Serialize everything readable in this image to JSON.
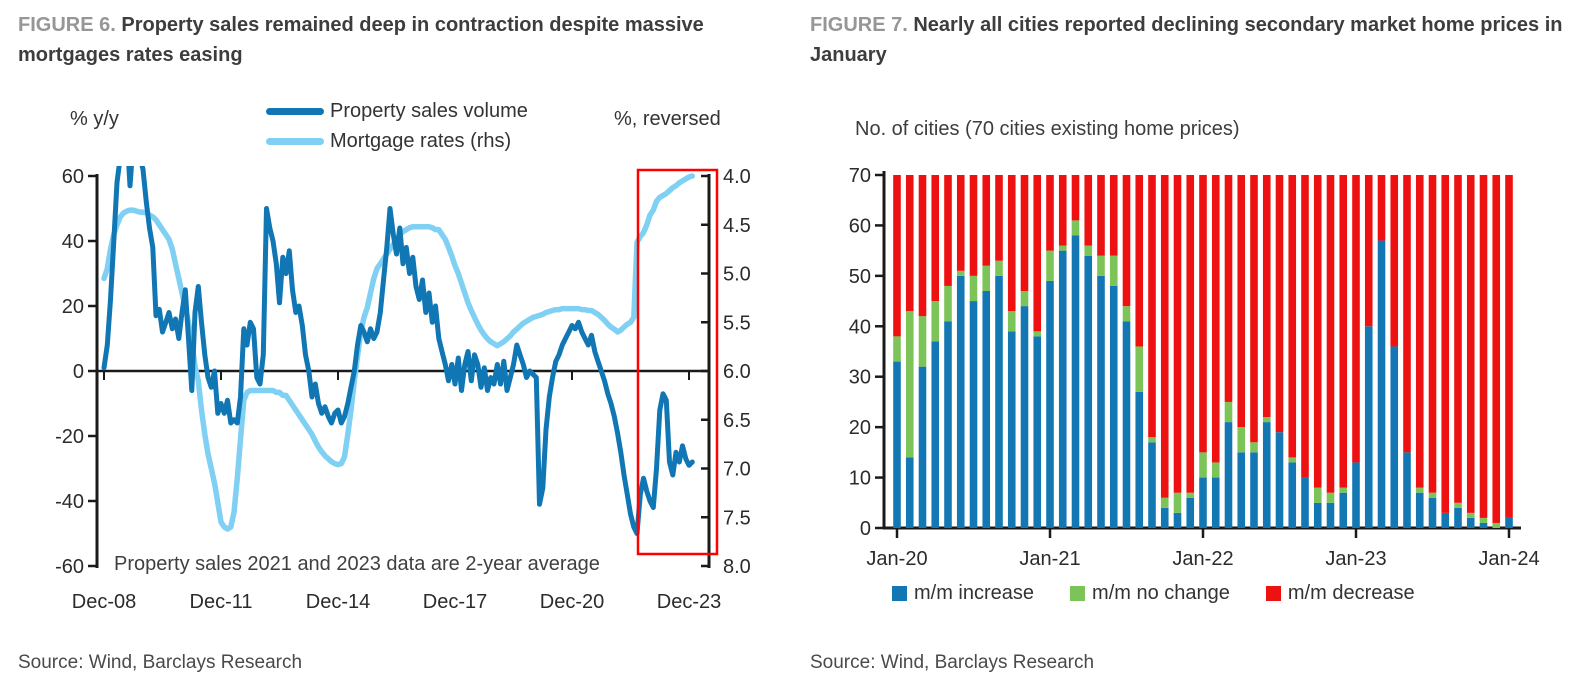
{
  "figure6": {
    "label": "FIGURE 6.",
    "title": "Property sales remained deep in contraction despite massive mortgages rates easing",
    "left_axis_unit": "% y/y",
    "right_axis_unit": "%, reversed",
    "annotation": "Property sales 2021 and 2023 data are 2-year average",
    "source": "Source: Wind, Barclays Research",
    "chart_data": {
      "type": "line",
      "x_tick_labels": [
        "Dec-08",
        "Dec-11",
        "Dec-14",
        "Dec-17",
        "Dec-20",
        "Dec-23"
      ],
      "x_start_label": "Dec-08",
      "x_end_label": "Jan-24",
      "x_frequency": "monthly",
      "left_ylim": [
        -60,
        60
      ],
      "left_yticks": [
        60,
        40,
        20,
        0,
        -20,
        -40,
        -60
      ],
      "right_ylim": [
        4.0,
        8.0
      ],
      "right_axis_reversed": true,
      "right_ytick_labels": [
        "4.0",
        "4.5",
        "5.0",
        "5.5",
        "6.0",
        "6.5",
        "7.0",
        "7.5",
        "8.0"
      ],
      "highlight_box": {
        "color": "#ff0000",
        "from_label": "Jul-22",
        "to_label": "Jan-24"
      },
      "series": [
        {
          "name": "Property sales volume",
          "axis": "left",
          "color": "#1076b4",
          "values": [
            1,
            8,
            22,
            40,
            58,
            66,
            71,
            74,
            57,
            71,
            69,
            66,
            62,
            52,
            44,
            38,
            17,
            19,
            12,
            15,
            18,
            13,
            16,
            10,
            18,
            25,
            10,
            -6,
            18,
            26,
            15,
            5,
            -2,
            -5,
            0,
            -13,
            -10,
            -13,
            -9,
            -16,
            -15,
            -16,
            -8,
            13,
            8,
            15,
            13,
            -2,
            -4,
            5,
            50,
            44,
            40,
            33,
            21,
            35,
            30,
            37,
            25,
            18,
            20,
            14,
            5,
            0,
            -8,
            -4,
            -10,
            -13,
            -11,
            -14,
            -16,
            -13,
            -12,
            -16,
            -14,
            -10,
            -5,
            0,
            8,
            14,
            12,
            9,
            13,
            10,
            12,
            18,
            28,
            38,
            50,
            42,
            36,
            44,
            33,
            38,
            30,
            35,
            26,
            22,
            28,
            18,
            24,
            15,
            20,
            10,
            6,
            2,
            -3,
            2,
            -4,
            4,
            -6,
            2,
            6,
            -3,
            5,
            2,
            -5,
            1,
            -6,
            -2,
            -4,
            2,
            -4,
            3,
            -6,
            -2,
            2,
            8,
            5,
            2,
            -2,
            0,
            -1,
            -2,
            -41,
            -36,
            -18,
            -8,
            -2,
            3,
            5,
            8,
            10,
            12,
            14,
            13,
            15,
            12,
            10,
            8,
            11,
            6,
            3,
            0,
            -3,
            -7,
            -10,
            -14,
            -19,
            -25,
            -32,
            -38,
            -44,
            -48,
            -50,
            -38,
            -33,
            -37,
            -40,
            -42,
            -30,
            -12,
            -7,
            -9,
            -28,
            -32,
            -25,
            -28,
            -23,
            -27,
            -29,
            -28
          ]
        },
        {
          "name": "Mortgage rates (rhs)",
          "axis": "right",
          "color": "#7fd0f2",
          "values": [
            5.05,
            4.95,
            4.75,
            4.6,
            4.5,
            4.42,
            4.38,
            4.36,
            4.35,
            4.35,
            4.36,
            4.37,
            4.37,
            4.38,
            4.4,
            4.42,
            4.45,
            4.5,
            4.55,
            4.6,
            4.65,
            4.75,
            4.9,
            5.05,
            5.2,
            5.35,
            5.5,
            5.7,
            5.95,
            6.1,
            6.4,
            6.65,
            6.85,
            7.0,
            7.15,
            7.35,
            7.55,
            7.6,
            7.62,
            7.6,
            7.45,
            7.1,
            6.7,
            6.3,
            6.22,
            6.2,
            6.2,
            6.2,
            6.2,
            6.2,
            6.2,
            6.2,
            6.2,
            6.22,
            6.22,
            6.25,
            6.25,
            6.3,
            6.35,
            6.4,
            6.45,
            6.5,
            6.55,
            6.6,
            6.65,
            6.72,
            6.78,
            6.83,
            6.87,
            6.9,
            6.93,
            6.95,
            6.96,
            6.95,
            6.88,
            6.65,
            6.4,
            6.1,
            5.85,
            5.6,
            5.45,
            5.35,
            5.2,
            5.05,
            4.95,
            4.9,
            4.85,
            4.8,
            4.75,
            4.7,
            4.65,
            4.6,
            4.57,
            4.55,
            4.53,
            4.52,
            4.52,
            4.52,
            4.52,
            4.52,
            4.52,
            4.53,
            4.55,
            4.55,
            4.6,
            4.65,
            4.73,
            4.82,
            4.92,
            5.0,
            5.1,
            5.2,
            5.3,
            5.38,
            5.45,
            5.52,
            5.58,
            5.63,
            5.67,
            5.7,
            5.72,
            5.74,
            5.72,
            5.7,
            5.67,
            5.64,
            5.6,
            5.57,
            5.54,
            5.51,
            5.49,
            5.47,
            5.45,
            5.44,
            5.43,
            5.42,
            5.4,
            5.39,
            5.38,
            5.37,
            5.37,
            5.36,
            5.36,
            5.36,
            5.36,
            5.36,
            5.36,
            5.37,
            5.37,
            5.38,
            5.38,
            5.4,
            5.42,
            5.45,
            5.48,
            5.52,
            5.55,
            5.57,
            5.6,
            5.58,
            5.55,
            5.52,
            5.5,
            5.45,
            4.68,
            4.62,
            4.58,
            4.5,
            4.4,
            4.35,
            4.26,
            4.22,
            4.2,
            4.18,
            4.15,
            4.12,
            4.1,
            4.07,
            4.05,
            4.03,
            4.01,
            4.0
          ]
        }
      ]
    }
  },
  "figure7": {
    "label": "FIGURE 7.",
    "title": "Nearly all cities reported declining secondary market home prices in January",
    "subtitle": "No. of cities (70 cities existing home prices)",
    "source": "Source: Wind, Barclays Research",
    "chart_data": {
      "type": "stacked_bar",
      "x_tick_labels": [
        "Jan-20",
        "Jan-21",
        "Jan-22",
        "Jan-23",
        "Jan-24"
      ],
      "x_start_label": "Jan-20",
      "x_end_label": "Jan-24",
      "x_frequency": "monthly",
      "ylim": [
        0,
        70
      ],
      "yticks": [
        0,
        10,
        20,
        30,
        40,
        50,
        60,
        70
      ],
      "total_per_bar": 70,
      "series": [
        {
          "name": "m/m increase",
          "color": "#1377b4",
          "values": [
            33,
            14,
            32,
            37,
            41,
            50,
            45,
            47,
            50,
            39,
            44,
            38,
            49,
            55,
            58,
            54,
            50,
            48,
            41,
            27,
            17,
            4,
            3,
            6,
            10,
            10,
            21,
            15,
            15,
            21,
            19,
            13,
            10,
            5,
            5,
            7,
            13,
            40,
            57,
            36,
            15,
            7,
            6,
            3,
            4,
            2,
            1,
            0,
            2
          ]
        },
        {
          "name": "m/m no change",
          "color": "#7cc457",
          "values": [
            5,
            29,
            10,
            8,
            7,
            1,
            5,
            5,
            3,
            4,
            3,
            1,
            6,
            1,
            3,
            2,
            4,
            6,
            3,
            9,
            1,
            2,
            4,
            1,
            5,
            3,
            4,
            5,
            2,
            1,
            0,
            1,
            0,
            3,
            2,
            1,
            0,
            0,
            0,
            0,
            0,
            1,
            1,
            0,
            1,
            1,
            1,
            1,
            0
          ]
        },
        {
          "name": "m/m decrease",
          "color": "#ee1111",
          "values": [
            32,
            27,
            28,
            25,
            22,
            19,
            20,
            18,
            17,
            27,
            23,
            31,
            15,
            14,
            9,
            14,
            16,
            16,
            26,
            34,
            52,
            64,
            63,
            63,
            55,
            57,
            45,
            50,
            53,
            48,
            51,
            56,
            60,
            62,
            63,
            62,
            57,
            30,
            13,
            34,
            55,
            62,
            63,
            67,
            65,
            67,
            68,
            69,
            68
          ]
        }
      ]
    }
  }
}
